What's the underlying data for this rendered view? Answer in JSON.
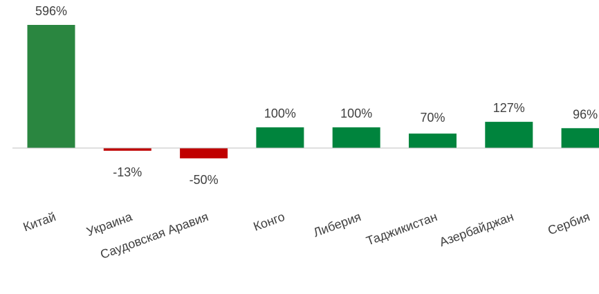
{
  "chart_data": {
    "type": "bar",
    "title": "",
    "xlabel": "",
    "ylabel": "",
    "categories": [
      "Китай",
      "Украина",
      "Саудовская Аравия",
      "Конго",
      "Либерия",
      "Таджикистан",
      "Азербайджан",
      "Сербия"
    ],
    "values": [
      596,
      -13,
      -50,
      100,
      100,
      70,
      127,
      96
    ],
    "data_labels": [
      "596%",
      "-13%",
      "-50%",
      "100%",
      "100%",
      "70%",
      "127%",
      "96%"
    ],
    "unit": "%",
    "ylim": [
      -60,
      600
    ],
    "grid": false,
    "legend": "none",
    "colors": {
      "highlight": "#2a8640",
      "positive": "#00843d",
      "negative": "#c00000",
      "axis": "#bfbfbf",
      "label": "#404040"
    },
    "highlight_index": 0
  }
}
